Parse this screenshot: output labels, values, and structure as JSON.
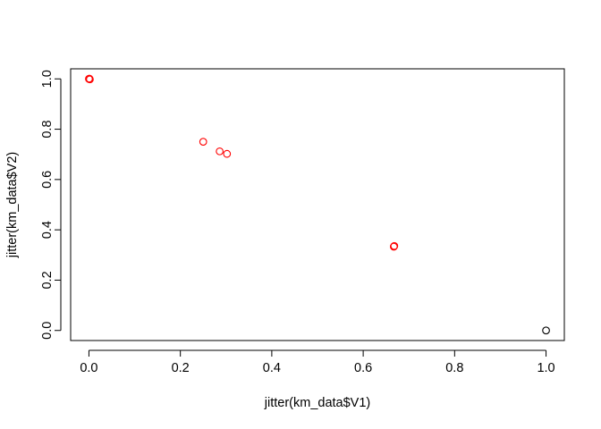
{
  "chart_data": {
    "type": "scatter",
    "title": "",
    "xlabel": "jitter(km_data$V1)",
    "ylabel": "jitter(km_data$V2)",
    "xlim": [
      -0.04,
      1.04
    ],
    "ylim": [
      -0.04,
      1.04
    ],
    "xticks": [
      0.0,
      0.2,
      0.4,
      0.6,
      0.8,
      1.0
    ],
    "xtick_labels": [
      "0.0",
      "0.2",
      "0.4",
      "0.6",
      "0.8",
      "1.0"
    ],
    "yticks": [
      0.0,
      0.2,
      0.4,
      0.6,
      0.8,
      1.0
    ],
    "ytick_labels": [
      "0.0",
      "0.2",
      "0.4",
      "0.6",
      "0.8",
      "1.0"
    ],
    "grid": false,
    "marker": "open-circle",
    "points": [
      {
        "x": 0.0,
        "y": 1.0,
        "color": "#ff0000"
      },
      {
        "x": 0.002,
        "y": 0.998,
        "color": "#ff0000"
      },
      {
        "x": 0.001,
        "y": 1.001,
        "color": "#ff0000"
      },
      {
        "x": 0.25,
        "y": 0.75,
        "color": "#ff0000"
      },
      {
        "x": 0.286,
        "y": 0.712,
        "color": "#ff0000"
      },
      {
        "x": 0.302,
        "y": 0.702,
        "color": "#ff0000"
      },
      {
        "x": 0.667,
        "y": 0.333,
        "color": "#ff0000"
      },
      {
        "x": 0.668,
        "y": 0.336,
        "color": "#ff0000"
      },
      {
        "x": 1.0,
        "y": 0.0,
        "color": "#000000"
      }
    ]
  }
}
